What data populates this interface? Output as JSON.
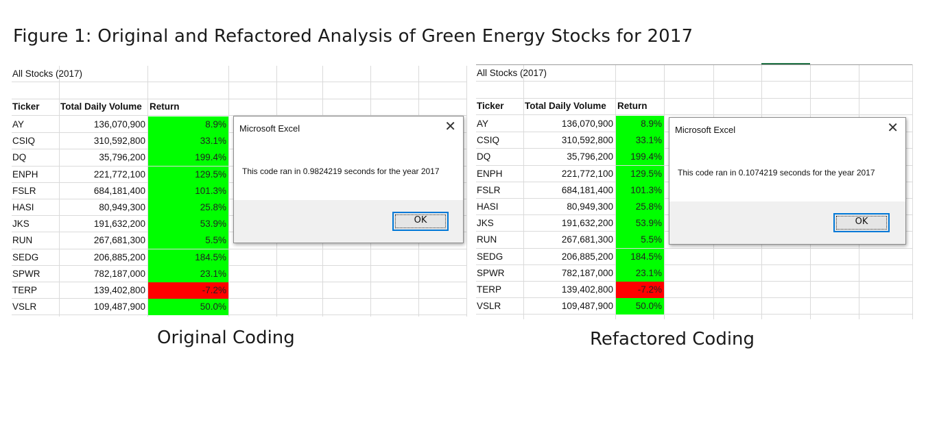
{
  "figure_title": "Figure 1: Original and Refactored Analysis of Green Energy Stocks for 2017",
  "panels": [
    {
      "sheet_title": "All Stocks (2017)",
      "caption": "Original Coding",
      "dialog": {
        "title": "Microsoft Excel",
        "close_glyph": "✕",
        "message": "This code ran in 0.9824219 seconds for the year 2017",
        "ok_label": "OK"
      }
    },
    {
      "sheet_title": "All Stocks (2017)",
      "caption": "Refactored Coding",
      "dialog": {
        "title": "Microsoft Excel",
        "close_glyph": "✕",
        "message": "This code ran in 0.1074219 seconds for the year 2017",
        "ok_label": "OK"
      }
    }
  ],
  "table": {
    "headers": [
      "Ticker",
      "Total Daily Volume",
      "Return"
    ],
    "rows": [
      {
        "ticker": "AY",
        "volume": "136,070,900",
        "ret": "8.9%",
        "status": "positive"
      },
      {
        "ticker": "CSIQ",
        "volume": "310,592,800",
        "ret": "33.1%",
        "status": "positive"
      },
      {
        "ticker": "DQ",
        "volume": "35,796,200",
        "ret": "199.4%",
        "status": "positive"
      },
      {
        "ticker": "ENPH",
        "volume": "221,772,100",
        "ret": "129.5%",
        "status": "positive"
      },
      {
        "ticker": "FSLR",
        "volume": "684,181,400",
        "ret": "101.3%",
        "status": "positive"
      },
      {
        "ticker": "HASI",
        "volume": "80,949,300",
        "ret": "25.8%",
        "status": "positive"
      },
      {
        "ticker": "JKS",
        "volume": "191,632,200",
        "ret": "53.9%",
        "status": "positive"
      },
      {
        "ticker": "RUN",
        "volume": "267,681,300",
        "ret": "5.5%",
        "status": "positive"
      },
      {
        "ticker": "SEDG",
        "volume": "206,885,200",
        "ret": "184.5%",
        "status": "positive"
      },
      {
        "ticker": "SPWR",
        "volume": "782,187,000",
        "ret": "23.1%",
        "status": "positive"
      },
      {
        "ticker": "TERP",
        "volume": "139,402,800",
        "ret": "-7.2%",
        "status": "negative"
      },
      {
        "ticker": "VSLR",
        "volume": "109,487,900",
        "ret": "50.0%",
        "status": "positive"
      }
    ]
  },
  "colors": {
    "positive_fill": "#00ff00",
    "negative_fill": "#ff0000",
    "button_border": "#0078d7"
  }
}
